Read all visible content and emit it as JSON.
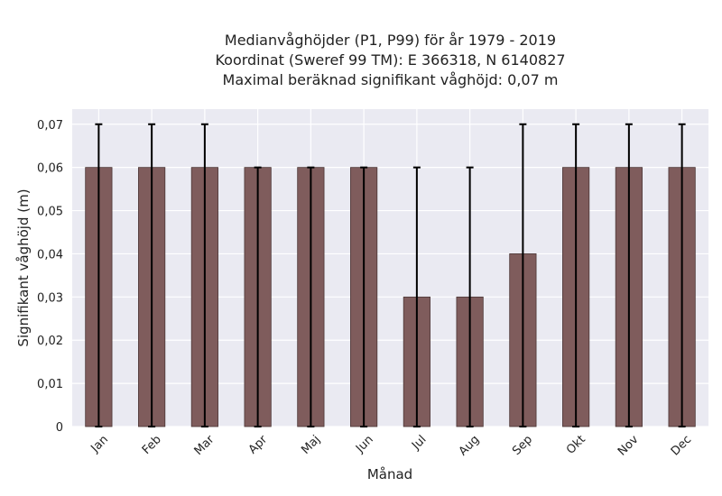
{
  "chart_data": {
    "type": "bar",
    "title_lines": [
      "Medianvåghöjder (P1, P99) för år 1979 - 2019",
      "Koordinat (Sweref 99 TM): E 366318, N 6140827",
      "Maximal beräknad signifikant våghöjd: 0,07 m"
    ],
    "xlabel": "Månad",
    "ylabel": "Signifikant våghöjd (m)",
    "categories": [
      "Jan",
      "Feb",
      "Mar",
      "Apr",
      "Maj",
      "Jun",
      "Jul",
      "Aug",
      "Sep",
      "Okt",
      "Nov",
      "Dec"
    ],
    "values": [
      0.06,
      0.06,
      0.06,
      0.06,
      0.06,
      0.06,
      0.03,
      0.03,
      0.04,
      0.06,
      0.06,
      0.06
    ],
    "error_low": [
      0,
      0,
      0,
      0,
      0,
      0,
      0,
      0,
      0,
      0,
      0,
      0
    ],
    "error_high": [
      0.07,
      0.07,
      0.07,
      0.06,
      0.06,
      0.06,
      0.06,
      0.06,
      0.07,
      0.07,
      0.07,
      0.07
    ],
    "ylim": [
      0,
      0.0735
    ],
    "yticks": [
      0,
      0.01,
      0.02,
      0.03,
      0.04,
      0.05,
      0.06,
      0.07
    ],
    "ytick_labels": [
      "0",
      "0,01",
      "0,02",
      "0,03",
      "0,04",
      "0,05",
      "0,06",
      "0,07"
    ],
    "grid": true,
    "colors": {
      "bar": "#7f5c5c",
      "bar_edge": "#4a3535",
      "error": "#000000",
      "plot_bg": "#eaeaf2",
      "grid": "#ffffff"
    }
  }
}
